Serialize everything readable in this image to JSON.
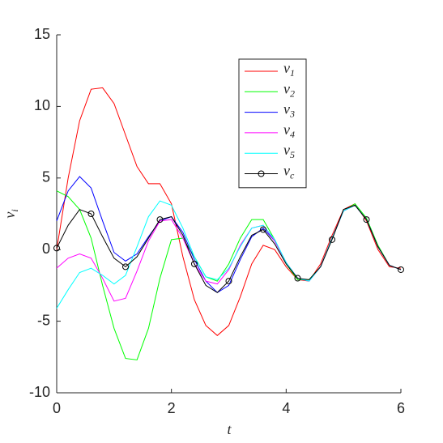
{
  "chart_data": {
    "type": "line",
    "xlabel": "t",
    "ylabel": "vi",
    "xlim": [
      0,
      6
    ],
    "ylim": [
      -10,
      15
    ],
    "xticks": [
      0,
      2,
      4,
      6
    ],
    "yticks": [
      -10,
      -5,
      0,
      5,
      10,
      15
    ],
    "grid": false,
    "legend": "upper center",
    "x": [
      0,
      0.2,
      0.4,
      0.6,
      0.8,
      1.0,
      1.2,
      1.4,
      1.6,
      1.8,
      2.0,
      2.2,
      2.4,
      2.6,
      2.8,
      3.0,
      3.2,
      3.4,
      3.6,
      3.8,
      4.0,
      4.2,
      4.4,
      4.6,
      4.8,
      5.0,
      5.2,
      5.4,
      5.6,
      5.8,
      6.0
    ],
    "series": [
      {
        "name": "v1",
        "color": "#ff0000",
        "values": [
          0,
          5,
          9,
          11.2,
          11.3,
          10.2,
          8,
          5.8,
          4.6,
          4.6,
          3.2,
          -0.5,
          -3.5,
          -5.3,
          -6,
          -5.3,
          -3.3,
          -1,
          0.3,
          0,
          -1.2,
          -2.1,
          -2.2,
          -1,
          1,
          2.8,
          3.2,
          2,
          0,
          -1.2,
          -1.3
        ]
      },
      {
        "name": "v2",
        "color": "#00ff00",
        "values": [
          4.1,
          3.7,
          2.8,
          0.8,
          -2.5,
          -5.5,
          -7.6,
          -7.7,
          -5.5,
          -2,
          0.7,
          0.8,
          -0.5,
          -1.9,
          -2.2,
          -1,
          0.8,
          2.1,
          2.1,
          0.7,
          -1,
          -2.1,
          -2.1,
          -1.2,
          0.8,
          2.7,
          3.2,
          2.2,
          0.3,
          -1.1,
          -1.4
        ]
      },
      {
        "name": "v3",
        "color": "#0000ff",
        "values": [
          2,
          4.1,
          5.1,
          4.3,
          2,
          -0.2,
          -0.8,
          -0.3,
          0.9,
          2,
          2.3,
          1.2,
          -0.7,
          -2.2,
          -3,
          -2.5,
          -0.7,
          0.9,
          1.5,
          0.6,
          -0.9,
          -2,
          -2.2,
          -1.2,
          0.8,
          2.7,
          3.1,
          2.1,
          0.2,
          -1.1,
          -1.4
        ]
      },
      {
        "name": "v4",
        "color": "#ff00ff",
        "values": [
          -1.3,
          -0.6,
          -0.3,
          -0.6,
          -2,
          -3.6,
          -3.4,
          -1.5,
          0.6,
          2,
          2.1,
          0.8,
          -1,
          -2.2,
          -2.4,
          -1.4,
          0.3,
          1.5,
          1.7,
          0.6,
          -0.9,
          -2,
          -2.2,
          -1.2,
          0.8,
          2.7,
          3.1,
          2.1,
          0.2,
          -1.1,
          -1.4
        ]
      },
      {
        "name": "v5",
        "color": "#00ffff",
        "values": [
          -4.1,
          -2.8,
          -1.6,
          -1.3,
          -1.8,
          -2.4,
          -1.8,
          0.2,
          2.3,
          3.4,
          3.1,
          1.5,
          -0.5,
          -1.9,
          -2.1,
          -1.3,
          0.2,
          1.5,
          1.7,
          0.7,
          -0.9,
          -2,
          -2.2,
          -1.2,
          0.8,
          2.7,
          3.1,
          2.1,
          0.2,
          -1.1,
          -1.4
        ]
      },
      {
        "name": "vc",
        "color": "#000000",
        "marker": "o",
        "marker_every": 3,
        "values": [
          0.1,
          1.7,
          2.8,
          2.5,
          0.9,
          -0.6,
          -1.2,
          -0.5,
          0.8,
          2.1,
          2.3,
          1,
          -1,
          -2.5,
          -3,
          -2.2,
          -0.5,
          1,
          1.4,
          0.4,
          -1,
          -2,
          -2.1,
          -1.2,
          0.7,
          2.8,
          3.1,
          2.1,
          0.2,
          -1.1,
          -1.4
        ]
      }
    ]
  }
}
